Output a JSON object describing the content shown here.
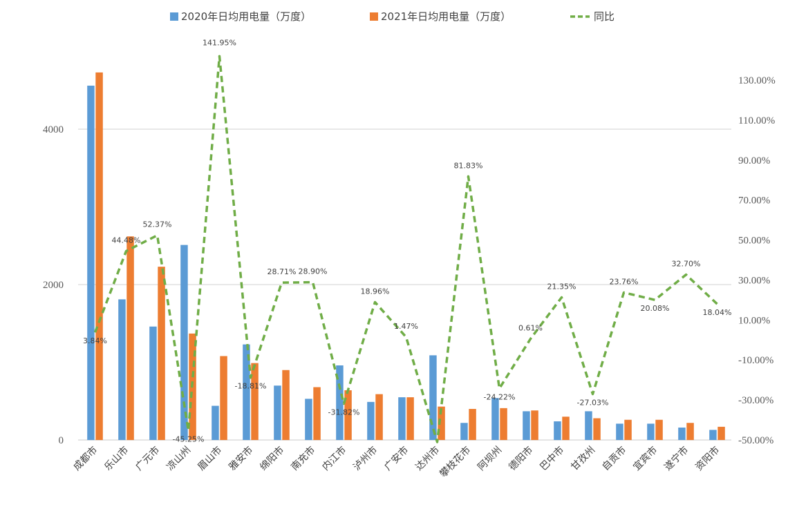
{
  "chart_data": {
    "type": "bar",
    "categories": [
      "成都市",
      "乐山市",
      "广元市",
      "凉山州",
      "眉山市",
      "雅安市",
      "绵阳市",
      "南充市",
      "内江市",
      "泸州市",
      "广安市",
      "达州市",
      "攀枝花市",
      "阿坝州",
      "德阳市",
      "巴中市",
      "甘孜州",
      "自贡市",
      "宜宾市",
      "遂宁市",
      "资阳市"
    ],
    "series": [
      {
        "name": "2020年日均用电量（万度）",
        "color": "#5B9BD5",
        "axis": "left",
        "values": [
          4560,
          1810,
          1460,
          2510,
          440,
          1230,
          700,
          530,
          960,
          490,
          550,
          1090,
          220,
          540,
          370,
          240,
          370,
          210,
          210,
          160,
          130
        ]
      },
      {
        "name": "2021年日均用电量（万度）",
        "color": "#ED7D31",
        "axis": "left",
        "values": [
          4730,
          2620,
          2230,
          1370,
          1080,
          990,
          900,
          680,
          640,
          590,
          550,
          430,
          400,
          410,
          380,
          300,
          280,
          260,
          260,
          220,
          170
        ]
      },
      {
        "name": "同比",
        "color": "#70AD47",
        "axis": "right",
        "type": "line",
        "style": "dashed",
        "values": [
          3.84,
          44.48,
          52.37,
          -45.25,
          141.95,
          -18.81,
          28.71,
          28.9,
          -31.82,
          18.96,
          1.47,
          -51.0,
          81.83,
          -24.22,
          0.61,
          21.35,
          -27.03,
          23.76,
          20.08,
          32.7,
          18.04
        ]
      }
    ],
    "point_labels": [
      "3.84%",
      "44.48%",
      "52.37%",
      "-45.25%",
      "141.95%",
      "-18.81%",
      "28.71%",
      "28.90%",
      "-31.82%",
      "18.96%",
      "1.47%",
      "",
      "81.83%",
      "-24.22%",
      "0.61%",
      "21.35%",
      "-27.03%",
      "23.76%",
      "20.08%",
      "32.70%",
      "18.04%"
    ],
    "y_left": {
      "min": 0,
      "max": 5000,
      "ticks": [
        0,
        2000,
        4000
      ],
      "tick_labels": [
        "0",
        "2000",
        "4000"
      ]
    },
    "y_right": {
      "min": -50,
      "max": 150,
      "ticks": [
        -50,
        -30,
        -10,
        10,
        30,
        50,
        70,
        90,
        110,
        130
      ],
      "tick_labels": [
        "-50.00%",
        "-30.00%",
        "-10.00%",
        "10.00%",
        "30.00%",
        "50.00%",
        "70.00%",
        "90.00%",
        "110.00%",
        "130.00%"
      ]
    },
    "gridlines": true,
    "legend_position": "top"
  }
}
